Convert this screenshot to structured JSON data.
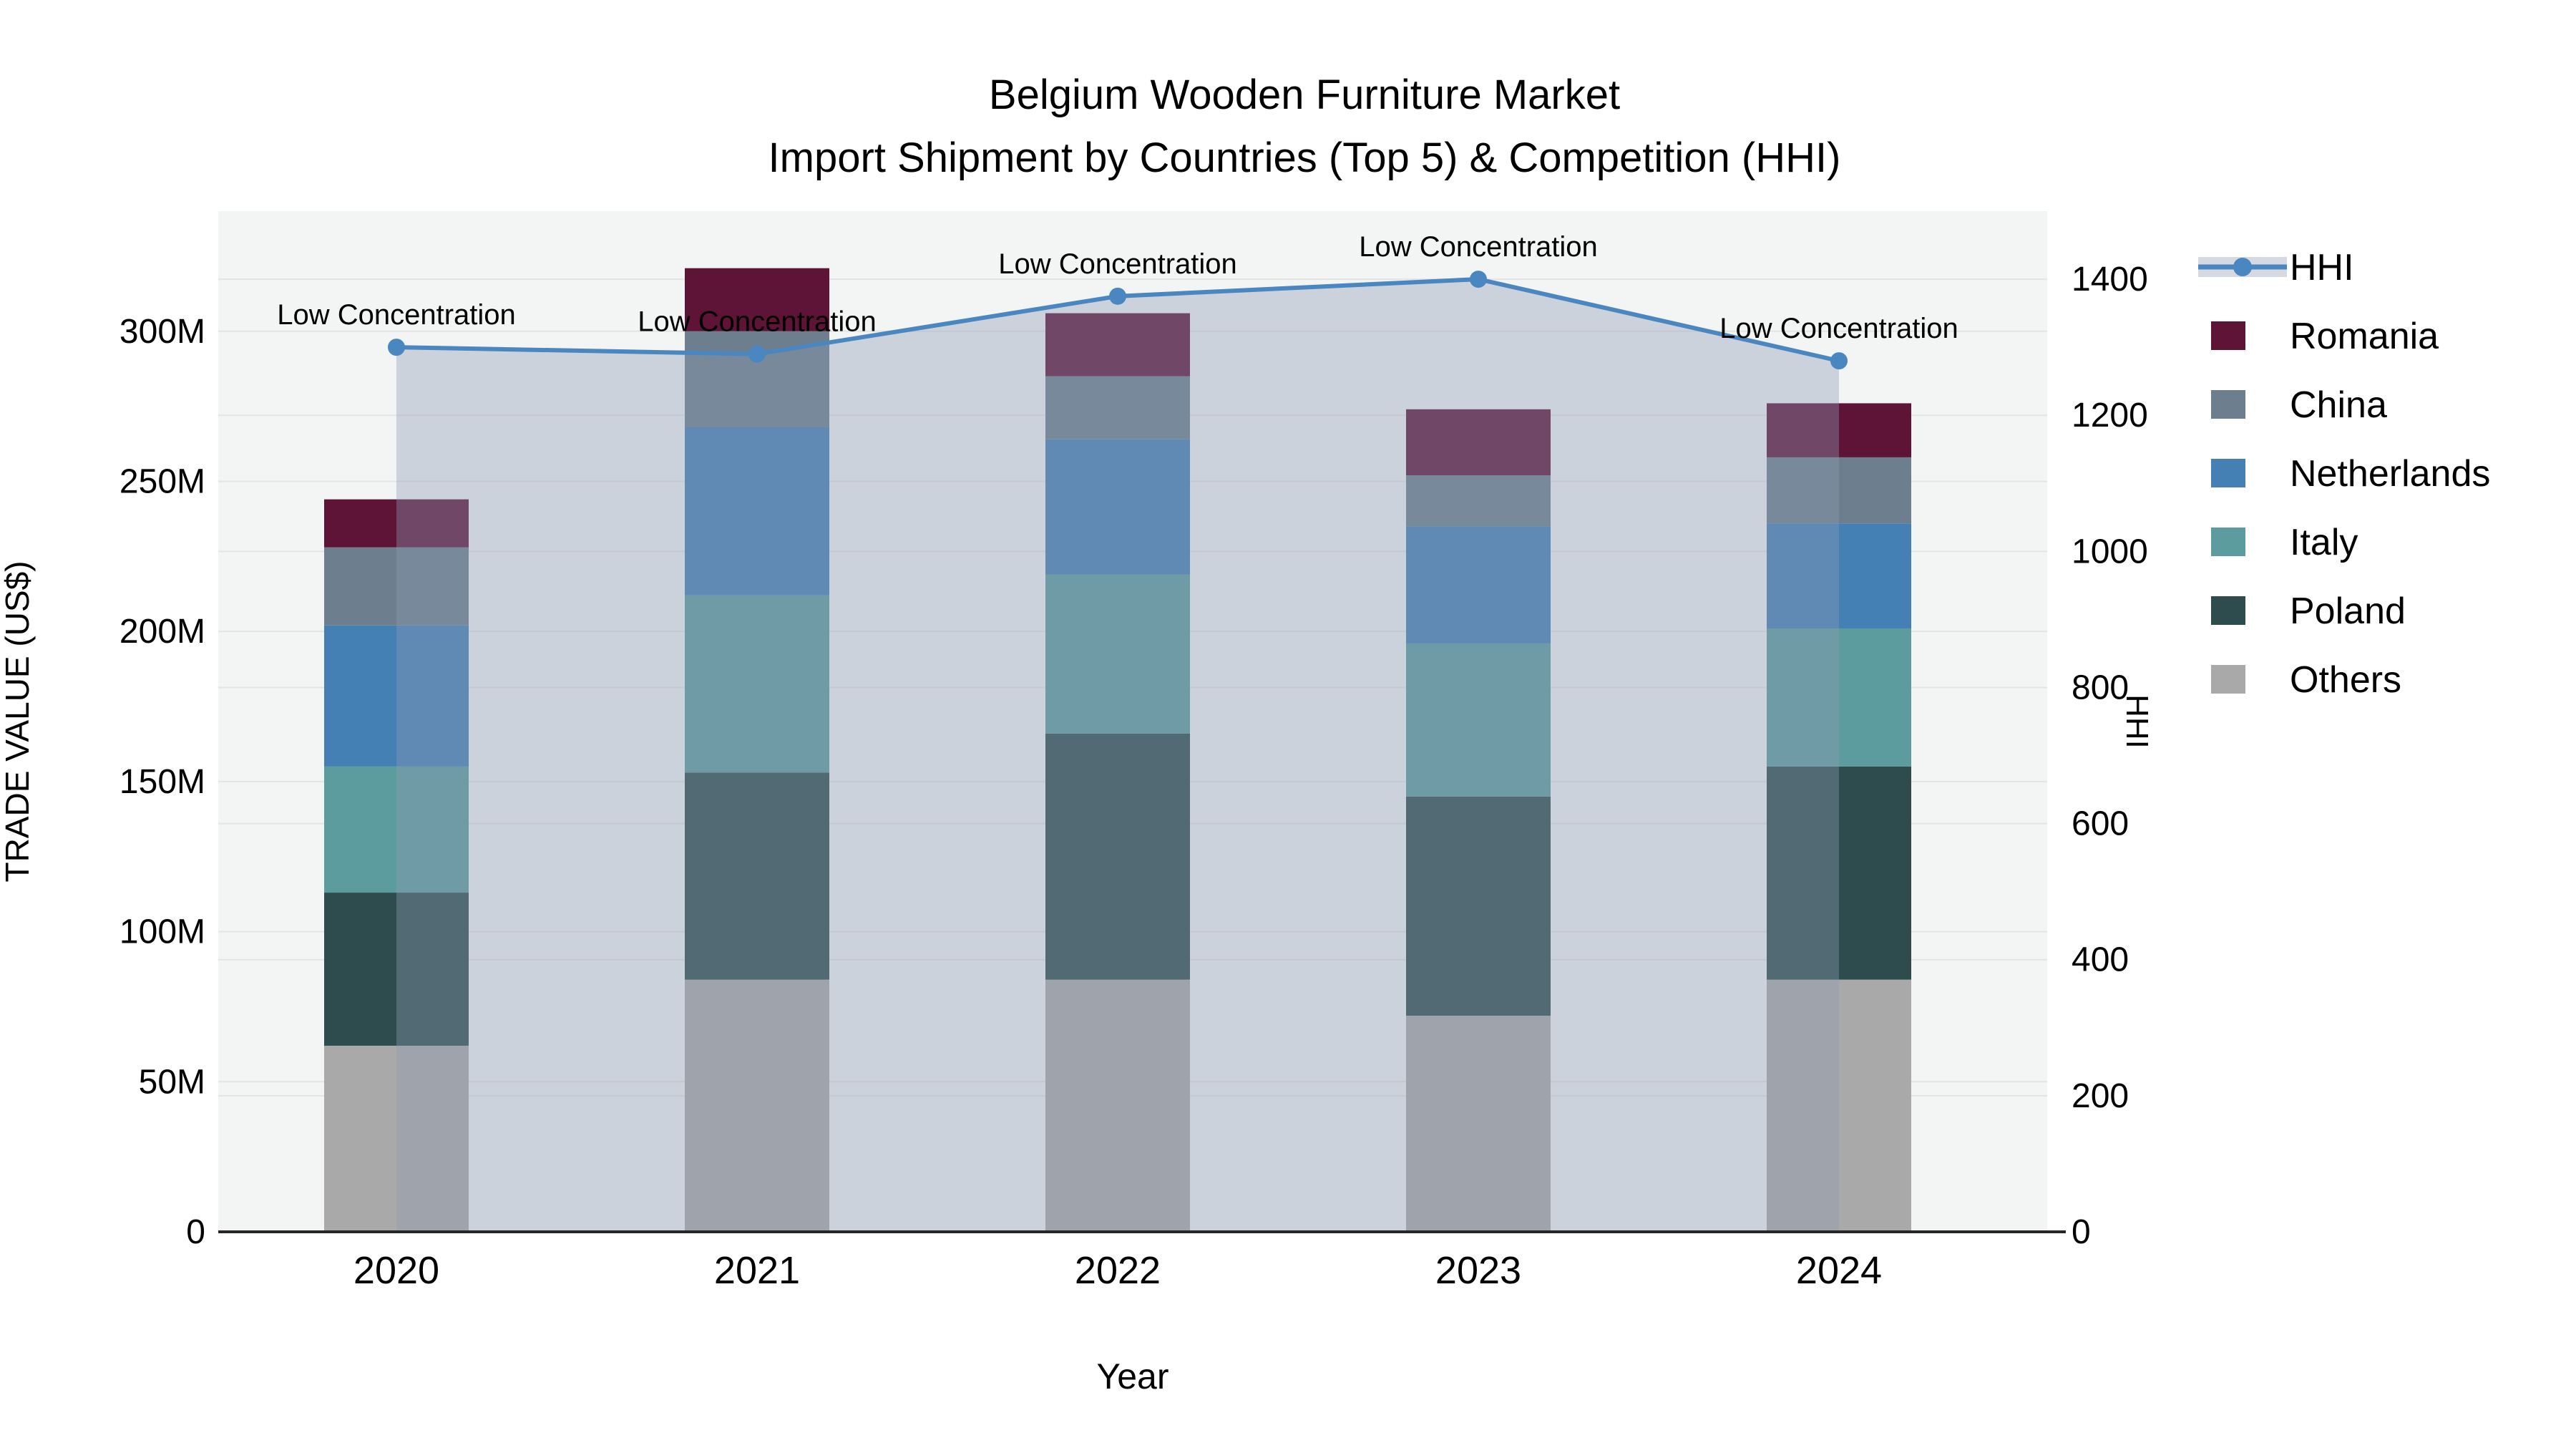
{
  "title": {
    "line1": "Belgium Wooden Furniture Market",
    "line2": "Import Shipment by Countries (Top 5) & Competition (HHI)"
  },
  "axis": {
    "x_label": "Year",
    "y_left_label": "TRADE VALUE (US$)",
    "y_right_label": "HHI"
  },
  "legend": {
    "items": [
      {
        "label": "HHI",
        "type": "line",
        "color": "#4a86c0"
      },
      {
        "label": "Romania",
        "type": "patch",
        "color": "#5e1437"
      },
      {
        "label": "China",
        "type": "patch",
        "color": "#6d7f8f"
      },
      {
        "label": "Netherlands",
        "type": "patch",
        "color": "#4480b4"
      },
      {
        "label": "Italy",
        "type": "patch",
        "color": "#5d9c9e"
      },
      {
        "label": "Poland",
        "type": "patch",
        "color": "#2e4c4e"
      },
      {
        "label": "Others",
        "type": "patch",
        "color": "#a9a9a9"
      }
    ]
  },
  "chart_data": {
    "type": "bar",
    "subtype": "stacked-bars-with-hhi-line-and-area",
    "title": "Belgium Wooden Furniture Market — Import Shipment by Countries (Top 5) & Competition (HHI)",
    "xlabel": "Year",
    "ylabel_left": "TRADE VALUE (US$)",
    "ylabel_right": "HHI",
    "categories": [
      "2020",
      "2021",
      "2022",
      "2023",
      "2024"
    ],
    "unit": "million US$",
    "series": [
      {
        "name": "Others",
        "color": "#a9a9a9",
        "values": [
          62,
          84,
          84,
          72,
          84
        ]
      },
      {
        "name": "Poland",
        "color": "#2e4c4e",
        "values": [
          51,
          69,
          82,
          73,
          71
        ]
      },
      {
        "name": "Italy",
        "color": "#5d9c9e",
        "values": [
          42,
          59,
          53,
          51,
          46
        ]
      },
      {
        "name": "Netherlands",
        "color": "#4480b4",
        "values": [
          47,
          56,
          45,
          39,
          35
        ]
      },
      {
        "name": "China",
        "color": "#6d7f8f",
        "values": [
          26,
          32,
          21,
          17,
          22
        ]
      },
      {
        "name": "Romania",
        "color": "#5e1437",
        "values": [
          16,
          21,
          21,
          22,
          18
        ]
      }
    ],
    "stack_totals": [
      244,
      321,
      306,
      274,
      276
    ],
    "line_series": {
      "name": "HHI",
      "color": "#4a86c0",
      "marker": "circle",
      "values": [
        1300,
        1290,
        1375,
        1400,
        1280
      ],
      "area_color": "rgba(142,154,179,0.38)"
    },
    "annotations": [
      {
        "year": "2020",
        "text": "Low Concentration"
      },
      {
        "year": "2021",
        "text": "Low Concentration"
      },
      {
        "year": "2022",
        "text": "Low Concentration"
      },
      {
        "year": "2023",
        "text": "Low Concentration"
      },
      {
        "year": "2024",
        "text": "Low Concentration"
      }
    ],
    "y_left": {
      "ylim": [
        0,
        340
      ],
      "ticks": [
        {
          "value": 0,
          "label": "0"
        },
        {
          "value": 50,
          "label": "50M"
        },
        {
          "value": 100,
          "label": "100M"
        },
        {
          "value": 150,
          "label": "150M"
        },
        {
          "value": 200,
          "label": "200M"
        },
        {
          "value": 250,
          "label": "250M"
        },
        {
          "value": 300,
          "label": "300M"
        }
      ]
    },
    "y_right": {
      "ylim": [
        0,
        1500
      ],
      "ticks": [
        {
          "value": 0,
          "label": "0"
        },
        {
          "value": 200,
          "label": "200"
        },
        {
          "value": 400,
          "label": "400"
        },
        {
          "value": 600,
          "label": "600"
        },
        {
          "value": 800,
          "label": "800"
        },
        {
          "value": 1000,
          "label": "1000"
        },
        {
          "value": 1200,
          "label": "1200"
        },
        {
          "value": 1400,
          "label": "1400"
        }
      ]
    },
    "grid": true,
    "legend_position": "right",
    "plot_background": "#f3f4f4",
    "gridline_color": "#e4e4e4"
  }
}
